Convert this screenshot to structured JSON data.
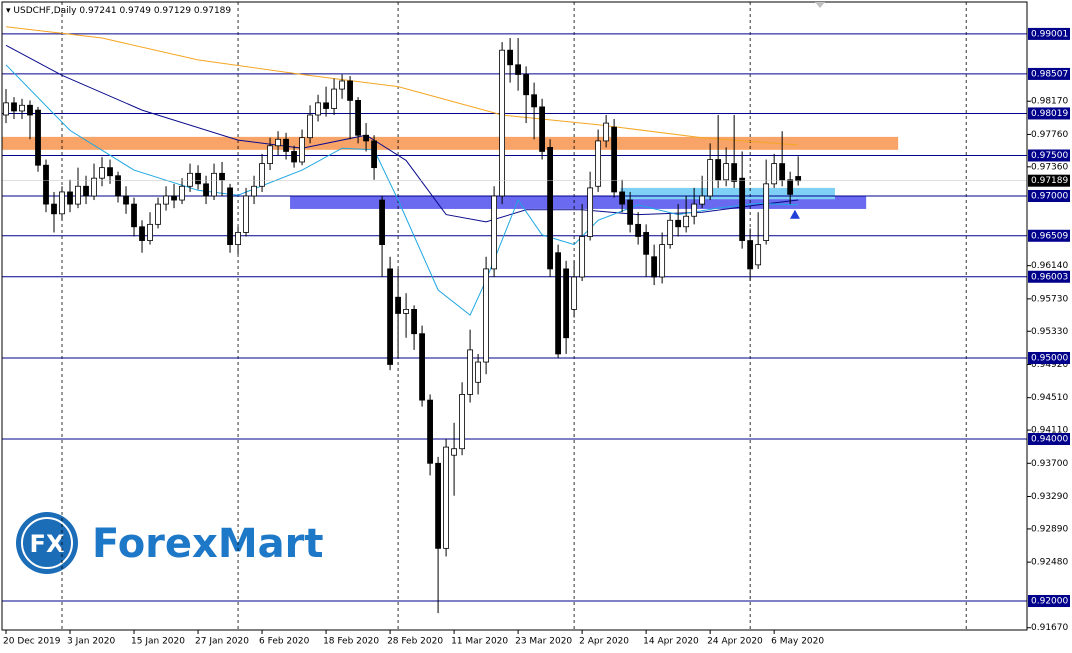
{
  "chart_data": {
    "type": "candlestick",
    "symbol": "USDCHF,Daily",
    "open": [
      0.98,
      0.9815,
      0.9805,
      0.9812,
      0.9806,
      0.9738,
      0.969,
      0.9678,
      0.9705,
      0.969,
      0.9712,
      0.97,
      0.9722,
      0.9735,
      0.9725,
      0.97,
      0.969,
      0.9662,
      0.9645,
      0.9665,
      0.969,
      0.97,
      0.9695,
      0.9712,
      0.9728,
      0.9715,
      0.97,
      0.9728,
      0.971,
      0.964,
      0.9655,
      0.97,
      0.9712,
      0.974,
      0.9762,
      0.977,
      0.9755,
      0.9742,
      0.9772,
      0.98,
      0.9815,
      0.9808,
      0.9832,
      0.9842,
      0.9818,
      0.9775,
      0.9768,
      0.9695,
      0.961,
      0.9575,
      0.9555,
      0.956,
      0.953,
      0.9448,
      0.937,
      0.9265,
      0.938,
      0.9388,
      0.9455,
      0.947,
      0.9495,
      0.961,
      0.97,
      0.988,
      0.9862,
      0.985,
      0.9825,
      0.981,
      0.976,
      0.963,
      0.961,
      0.956,
      0.96,
      0.965,
      0.9712,
      0.9768,
      0.9785,
      0.9705,
      0.9695,
      0.9665,
      0.9655,
      0.9625,
      0.96,
      0.964,
      0.967,
      0.9662,
      0.9675,
      0.969,
      0.97,
      0.9745,
      0.972,
      0.974,
      0.9722,
      0.9645,
      0.9615,
      0.9645,
      0.9715,
      0.974,
      0.972,
      0.97241
    ],
    "high": [
      0.9832,
      0.9822,
      0.982,
      0.9818,
      0.981,
      0.9745,
      0.9705,
      0.9712,
      0.972,
      0.9735,
      0.9725,
      0.974,
      0.9748,
      0.9745,
      0.973,
      0.9712,
      0.9698,
      0.967,
      0.968,
      0.9698,
      0.9712,
      0.9715,
      0.9722,
      0.974,
      0.9738,
      0.9725,
      0.974,
      0.9742,
      0.9715,
      0.9662,
      0.971,
      0.9725,
      0.9752,
      0.9772,
      0.978,
      0.9778,
      0.9762,
      0.9782,
      0.9812,
      0.9825,
      0.9835,
      0.9845,
      0.985,
      0.9848,
      0.9822,
      0.979,
      0.9775,
      0.97,
      0.9625,
      0.961,
      0.958,
      0.9565,
      0.954,
      0.9455,
      0.9378,
      0.94,
      0.942,
      0.947,
      0.9535,
      0.9505,
      0.9625,
      0.9712,
      0.989,
      0.9895,
      0.9895,
      0.986,
      0.984,
      0.982,
      0.977,
      0.964,
      0.962,
      0.962,
      0.969,
      0.973,
      0.9782,
      0.98,
      0.9795,
      0.972,
      0.9705,
      0.968,
      0.9665,
      0.964,
      0.9655,
      0.9678,
      0.969,
      0.97,
      0.971,
      0.9725,
      0.9765,
      0.98,
      0.976,
      0.98,
      0.9755,
      0.966,
      0.968,
      0.9745,
      0.9752,
      0.978,
      0.973,
      0.9749
    ],
    "low": [
      0.979,
      0.9795,
      0.9795,
      0.977,
      0.973,
      0.968,
      0.9655,
      0.967,
      0.968,
      0.9685,
      0.969,
      0.9695,
      0.9712,
      0.9715,
      0.9692,
      0.9678,
      0.965,
      0.963,
      0.964,
      0.966,
      0.9682,
      0.9685,
      0.969,
      0.9705,
      0.9708,
      0.969,
      0.9695,
      0.97,
      0.963,
      0.9628,
      0.965,
      0.969,
      0.9705,
      0.9732,
      0.975,
      0.9745,
      0.9735,
      0.9738,
      0.9765,
      0.9792,
      0.9798,
      0.98,
      0.982,
      0.977,
      0.9765,
      0.9755,
      0.972,
      0.96,
      0.9485,
      0.95,
      0.9525,
      0.951,
      0.944,
      0.9355,
      0.9185,
      0.9255,
      0.933,
      0.938,
      0.9445,
      0.9455,
      0.948,
      0.96,
      0.969,
      0.984,
      0.983,
      0.979,
      0.977,
      0.9745,
      0.96,
      0.95,
      0.9505,
      0.955,
      0.9595,
      0.9645,
      0.9705,
      0.976,
      0.9698,
      0.968,
      0.9655,
      0.964,
      0.96,
      0.959,
      0.9592,
      0.9635,
      0.965,
      0.9655,
      0.9665,
      0.9685,
      0.9695,
      0.971,
      0.9712,
      0.971,
      0.9635,
      0.9595,
      0.961,
      0.964,
      0.971,
      0.9712,
      0.969,
      0.97129
    ],
    "close": [
      0.9815,
      0.9805,
      0.9812,
      0.98,
      0.9738,
      0.969,
      0.9678,
      0.9705,
      0.969,
      0.9712,
      0.97,
      0.9722,
      0.9735,
      0.9725,
      0.97,
      0.969,
      0.9662,
      0.9645,
      0.9665,
      0.969,
      0.97,
      0.9695,
      0.9712,
      0.9728,
      0.9715,
      0.97,
      0.9728,
      0.972,
      0.964,
      0.9655,
      0.97,
      0.9712,
      0.974,
      0.9762,
      0.977,
      0.9755,
      0.9742,
      0.9772,
      0.98,
      0.9815,
      0.9808,
      0.9832,
      0.9842,
      0.9818,
      0.9775,
      0.9768,
      0.9735,
      0.964,
      0.9492,
      0.9555,
      0.956,
      0.953,
      0.9448,
      0.937,
      0.9265,
      0.939,
      0.9388,
      0.9455,
      0.951,
      0.9495,
      0.961,
      0.97,
      0.988,
      0.9862,
      0.985,
      0.9825,
      0.981,
      0.9755,
      0.961,
      0.9505,
      0.9525,
      0.96,
      0.965,
      0.971,
      0.9768,
      0.979,
      0.9705,
      0.969,
      0.9665,
      0.965,
      0.9628,
      0.96,
      0.964,
      0.967,
      0.9662,
      0.9675,
      0.969,
      0.97,
      0.9745,
      0.972,
      0.974,
      0.9718,
      0.9645,
      0.961,
      0.964,
      0.9715,
      0.974,
      0.972,
      0.9702,
      0.97189
    ],
    "up_color": "#ffffff",
    "down_color": "#000000",
    "xlim": [
      -0.5,
      127.6
    ],
    "ylim": [
      0.91642,
      0.99395
    ],
    "xticks": [
      {
        "value": 0,
        "label": "20 Dec 2019"
      },
      {
        "value": 8,
        "label": "3 Jan 2020"
      },
      {
        "value": 16,
        "label": "15 Jan 2020"
      },
      {
        "value": 24,
        "label": "27 Jan 2020"
      },
      {
        "value": 32,
        "label": "6 Feb 2020"
      },
      {
        "value": 40,
        "label": "18 Feb 2020"
      },
      {
        "value": 48,
        "label": "28 Feb 2020"
      },
      {
        "value": 56,
        "label": "11 Mar 2020"
      },
      {
        "value": 64,
        "label": "23 Mar 2020"
      },
      {
        "value": 72,
        "label": "2 Apr 2020"
      },
      {
        "value": 80,
        "label": "14 Apr 2020"
      },
      {
        "value": 88,
        "label": "24 Apr 2020"
      },
      {
        "value": 96,
        "label": "6 May 2020"
      }
    ],
    "yticks": [
      {
        "value": 0.9817,
        "label": "0.98170"
      },
      {
        "value": 0.9776,
        "label": "0.97760"
      },
      {
        "value": 0.9736,
        "label": "0.97360"
      },
      {
        "value": 0.9614,
        "label": "0.96140"
      },
      {
        "value": 0.9573,
        "label": "0.95730"
      },
      {
        "value": 0.9533,
        "label": "0.95330"
      },
      {
        "value": 0.9492,
        "label": "0.94920"
      },
      {
        "value": 0.9451,
        "label": "0.94510"
      },
      {
        "value": 0.9411,
        "label": "0.94110"
      },
      {
        "value": 0.937,
        "label": "0.93700"
      },
      {
        "value": 0.9329,
        "label": "0.93290"
      },
      {
        "value": 0.9289,
        "label": "0.92890"
      },
      {
        "value": 0.9248,
        "label": "0.92480"
      },
      {
        "value": 0.9167,
        "label": "0.91670"
      }
    ],
    "xgrid": [
      7,
      29,
      49,
      71,
      93,
      120
    ],
    "levels": [
      {
        "value": 0.99001,
        "label": "0.99001"
      },
      {
        "value": 0.98507,
        "label": "0.98507"
      },
      {
        "value": 0.98019,
        "label": "0.98019"
      },
      {
        "value": 0.975,
        "label": "0.97500"
      },
      {
        "value": 0.97,
        "label": "0.97000"
      },
      {
        "value": 0.96509,
        "label": "0.96509"
      },
      {
        "value": 0.96003,
        "label": "0.96003"
      },
      {
        "value": 0.95,
        "label": "0.95000"
      },
      {
        "value": 0.94,
        "label": "0.94000"
      },
      {
        "value": 0.92,
        "label": "0.92000"
      }
    ],
    "level_color": "#00008b",
    "ma": [
      {
        "color": "#f5a623",
        "x": [
          0,
          12,
          24,
          37,
          49,
          62,
          74,
          87,
          99
        ],
        "values": [
          0.9909,
          0.9895,
          0.9868,
          0.985,
          0.9835,
          0.98,
          0.9788,
          0.9772,
          0.9763
        ]
      },
      {
        "color": "#0a0a8c",
        "x": [
          0,
          7,
          17,
          29,
          37,
          45,
          50,
          55,
          60,
          65,
          72,
          79,
          87,
          94,
          99
        ],
        "values": [
          0.9886,
          0.9849,
          0.9806,
          0.9769,
          0.9759,
          0.9775,
          0.9744,
          0.9677,
          0.9668,
          0.9683,
          0.9683,
          0.9677,
          0.968,
          0.9689,
          0.9695
        ]
      },
      {
        "color": "#1ea7e1",
        "x": [
          0,
          8,
          16,
          24,
          29,
          37,
          42,
          46,
          49,
          54,
          58,
          60,
          64,
          67,
          71,
          74,
          79,
          84,
          89,
          94,
          99
        ],
        "values": [
          0.9862,
          0.9781,
          0.9732,
          0.9707,
          0.9701,
          0.9732,
          0.9759,
          0.9757,
          0.9695,
          0.9584,
          0.9553,
          0.9596,
          0.9695,
          0.9652,
          0.964,
          0.967,
          0.9689,
          0.9677,
          0.9685,
          0.9691,
          0.9689
        ]
      }
    ],
    "zones": [
      {
        "color": "#f8a468",
        "x": [
          -0.5,
          111.5
        ],
        "range": [
          0.9757,
          0.9773
        ]
      },
      {
        "color": "#6a6af0",
        "x": [
          35.5,
          107.5
        ],
        "range": [
          0.9684,
          0.97
        ]
      },
      {
        "color": "#7fd0f5",
        "x": [
          76.8,
          103.6
        ],
        "range": [
          0.9696,
          0.971
        ]
      }
    ],
    "arrow": {
      "x": 98.6,
      "value": 0.9683,
      "color": "#1f3fd8"
    }
  },
  "watermark": {
    "logo": "FX",
    "text": "ForexMart"
  }
}
